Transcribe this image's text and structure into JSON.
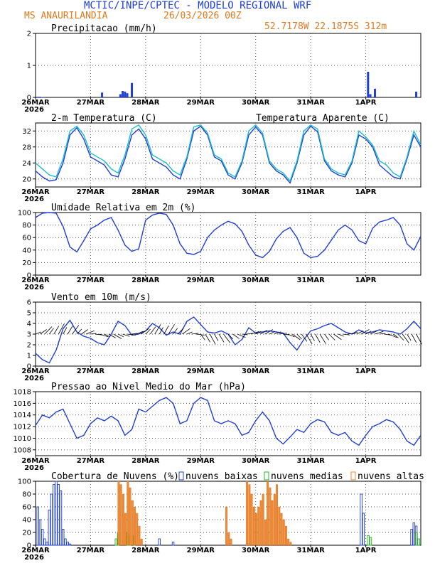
{
  "header": {
    "title": "MCTIC/INPE/CPTEC - MODELO REGIONAL WRF",
    "location": "MS ANAURILANDIA",
    "run": "26/03/2026 00Z",
    "coords": "52.7178W 22.1875S 312m"
  },
  "colors": {
    "series": "#1f3fd6",
    "apparent": "#1bbfc9",
    "low": "#1f3fd6",
    "mid": "#22b822",
    "high": "#f08a30",
    "grid": "#555555",
    "vector": "#000000"
  },
  "x_axis": {
    "labels": [
      "26MAR",
      "27MAR",
      "28MAR",
      "29MAR",
      "30MAR",
      "31MAR",
      "1APR"
    ],
    "year": "2026",
    "hours": [
      0,
      168
    ]
  },
  "chart_data": [
    {
      "type": "bar",
      "title": "Precipitacao (mm/h)",
      "ylim": [
        0,
        2
      ],
      "yticks": [
        "0",
        "1",
        "2"
      ],
      "series": [
        {
          "name": "Precipitacao",
          "x": [
            1,
            2,
            3,
            29,
            37,
            38,
            39,
            40,
            42,
            145,
            146,
            148,
            166
          ],
          "values": [
            0.02,
            0.02,
            0.01,
            0.15,
            0.1,
            0.2,
            0.18,
            0.13,
            0.45,
            0.8,
            0.1,
            0.27,
            0.18
          ]
        }
      ]
    },
    {
      "type": "line",
      "title": "2-m Temperatura (C)",
      "legend": "Temperatura Aparente (C)",
      "ylim": [
        18,
        34
      ],
      "yticks": [
        "20",
        "24",
        "28",
        "32"
      ],
      "x": [
        0,
        3,
        6,
        9,
        12,
        15,
        18,
        21,
        24,
        27,
        30,
        33,
        36,
        39,
        42,
        45,
        48,
        51,
        54,
        57,
        60,
        63,
        66,
        69,
        72,
        75,
        78,
        81,
        84,
        87,
        90,
        93,
        96,
        99,
        102,
        105,
        108,
        111,
        114,
        117,
        120,
        123,
        126,
        129,
        132,
        135,
        138,
        141,
        144,
        147,
        150,
        153,
        156,
        159,
        162,
        165,
        168
      ],
      "series": [
        {
          "name": "Temperatura",
          "values": [
            22,
            20.5,
            19.5,
            19.8,
            24,
            31,
            32.8,
            30,
            25.5,
            24.5,
            23.5,
            21,
            20.5,
            25,
            31,
            32.5,
            30,
            25,
            24,
            23,
            21,
            20,
            25,
            32,
            33.2,
            31,
            25.5,
            24.5,
            21,
            20,
            24,
            31,
            33,
            31,
            24,
            22,
            21,
            19,
            24,
            31,
            33.2,
            31.8,
            24.5,
            22,
            21,
            20.5,
            24,
            31,
            30,
            28,
            23.5,
            22,
            20.5,
            20,
            25,
            31,
            28
          ]
        },
        {
          "name": "Temperatura Aparente",
          "values": [
            24,
            22.5,
            21,
            20.5,
            25,
            32,
            33.2,
            31,
            26.5,
            25.5,
            24.5,
            22.5,
            21.5,
            26,
            32.5,
            33.5,
            31,
            26,
            25,
            24,
            22,
            21,
            25.5,
            33,
            33.5,
            31.5,
            26,
            25,
            21.5,
            20.5,
            24.5,
            32,
            33.5,
            31.5,
            24.5,
            22.5,
            21.5,
            19.5,
            24.5,
            32,
            33.5,
            32.5,
            25,
            22.5,
            21.5,
            21,
            24.5,
            32,
            30.5,
            28.5,
            24.5,
            23.5,
            21.5,
            20.5,
            25.5,
            32,
            28.5
          ]
        }
      ]
    },
    {
      "type": "line",
      "title": "Umidade Relativa em 2m (%)",
      "ylim": [
        0,
        100
      ],
      "yticks": [
        "0",
        "20",
        "40",
        "60",
        "80",
        "100"
      ],
      "x": [
        0,
        3,
        6,
        9,
        12,
        15,
        18,
        21,
        24,
        27,
        30,
        33,
        36,
        39,
        42,
        45,
        48,
        51,
        54,
        57,
        60,
        63,
        66,
        69,
        72,
        75,
        78,
        81,
        84,
        87,
        90,
        93,
        96,
        99,
        102,
        105,
        108,
        111,
        114,
        117,
        120,
        123,
        126,
        129,
        132,
        135,
        138,
        141,
        144,
        147,
        150,
        153,
        156,
        159,
        162,
        165,
        168
      ],
      "series": [
        {
          "name": "Umidade",
          "values": [
            92,
            99,
            100,
            99,
            78,
            45,
            37,
            55,
            74,
            80,
            88,
            92,
            72,
            48,
            38,
            42,
            88,
            96,
            99,
            97,
            80,
            50,
            35,
            33,
            38,
            60,
            72,
            80,
            86,
            82,
            70,
            48,
            32,
            28,
            38,
            58,
            70,
            76,
            60,
            35,
            28,
            30,
            40,
            56,
            72,
            80,
            72,
            55,
            50,
            75,
            85,
            88,
            92,
            80,
            50,
            40,
            62
          ]
        }
      ]
    },
    {
      "type": "line",
      "title": "Vento em 10m (m/s)",
      "ylim": [
        0,
        6
      ],
      "yticks": [
        "0",
        "1",
        "2",
        "3",
        "4",
        "5",
        "6"
      ],
      "x": [
        0,
        3,
        6,
        9,
        12,
        15,
        18,
        21,
        24,
        27,
        30,
        33,
        36,
        39,
        42,
        45,
        48,
        51,
        54,
        57,
        60,
        63,
        66,
        69,
        72,
        75,
        78,
        81,
        84,
        87,
        90,
        93,
        96,
        99,
        102,
        105,
        108,
        111,
        114,
        117,
        120,
        123,
        126,
        129,
        132,
        135,
        138,
        141,
        144,
        147,
        150,
        153,
        156,
        159,
        162,
        165,
        168
      ],
      "series": [
        {
          "name": "Vento",
          "values": [
            1.2,
            0.6,
            0.3,
            1.5,
            3.5,
            4.3,
            3.2,
            2.8,
            2.6,
            2.2,
            2.0,
            3.0,
            4.2,
            3.8,
            2.9,
            3.0,
            3.3,
            4.0,
            3.6,
            2.9,
            3.2,
            3.0,
            4.2,
            4.6,
            3.9,
            3.2,
            3.1,
            3.3,
            3.0,
            2.0,
            2.5,
            3.6,
            3.1,
            3.2,
            3.3,
            3.2,
            3.1,
            2.2,
            1.5,
            2.5,
            3.3,
            3.5,
            3.8,
            4.0,
            3.6,
            3.2,
            3.0,
            3.4,
            3.1,
            3.2,
            3.4,
            3.3,
            3.2,
            3.0,
            3.5,
            4.2,
            3.5
          ]
        }
      ]
    },
    {
      "type": "line",
      "title": "Pressao ao Nivel Medio do Mar (hPa)",
      "ylim": [
        1007,
        1018
      ],
      "yticks": [
        "1008",
        "1010",
        "1012",
        "1014",
        "1016",
        "1018"
      ],
      "x": [
        0,
        3,
        6,
        9,
        12,
        15,
        18,
        21,
        24,
        27,
        30,
        33,
        36,
        39,
        42,
        45,
        48,
        51,
        54,
        57,
        60,
        63,
        66,
        69,
        72,
        75,
        78,
        81,
        84,
        87,
        90,
        93,
        96,
        99,
        102,
        105,
        108,
        111,
        114,
        117,
        120,
        123,
        126,
        129,
        132,
        135,
        138,
        141,
        144,
        147,
        150,
        153,
        156,
        159,
        162,
        165,
        168
      ],
      "series": [
        {
          "name": "Pressao",
          "values": [
            1012.2,
            1014,
            1013.5,
            1014.5,
            1015,
            1012.5,
            1010,
            1010.5,
            1012.5,
            1013.5,
            1013,
            1013.8,
            1013,
            1010.5,
            1011.5,
            1015,
            1014.5,
            1015.5,
            1016.5,
            1017,
            1016,
            1012.5,
            1013,
            1016,
            1017,
            1016.5,
            1013,
            1012.5,
            1013,
            1012.5,
            1010.5,
            1011,
            1013,
            1014.5,
            1013,
            1010,
            1009,
            1010.2,
            1011.5,
            1011,
            1012.5,
            1013.2,
            1012.8,
            1011,
            1010.5,
            1011,
            1009.5,
            1008.8,
            1010.5,
            1012,
            1012.5,
            1013.2,
            1012.8,
            1011.5,
            1009.5,
            1008.8,
            1010.5
          ]
        }
      ]
    },
    {
      "type": "bar",
      "title": "Cobertura de Nuvens (%)",
      "legend": [
        "nuvens baixas",
        "nuvens medias",
        "nuvens altas"
      ],
      "ylim": [
        0,
        100
      ],
      "yticks": [
        "0",
        "20",
        "40",
        "60",
        "80",
        "100"
      ],
      "series": [
        {
          "name": "nuvens baixas",
          "x": [
            1,
            2,
            3,
            4,
            5,
            6,
            7,
            8,
            9,
            10,
            11,
            12,
            13,
            14,
            15,
            54,
            60,
            142,
            143,
            164,
            165,
            166
          ],
          "values": [
            60,
            40,
            25,
            10,
            5,
            55,
            80,
            95,
            100,
            95,
            85,
            25,
            10,
            5,
            2,
            10,
            5,
            80,
            50,
            25,
            35,
            30
          ]
        },
        {
          "name": "nuvens medias",
          "x": [
            35,
            36,
            40,
            41,
            43,
            145,
            146,
            166,
            167
          ],
          "values": [
            10,
            20,
            20,
            15,
            15,
            15,
            12,
            20,
            10
          ]
        },
        {
          "name": "nuvens altas",
          "x": [
            36,
            37,
            38,
            39,
            40,
            41,
            42,
            43,
            44,
            45,
            46,
            83,
            84,
            85,
            92,
            93,
            94,
            95,
            96,
            97,
            98,
            99,
            100,
            101,
            102,
            103,
            104,
            105,
            106,
            107,
            108,
            109,
            110,
            111
          ],
          "values": [
            100,
            95,
            80,
            50,
            100,
            90,
            70,
            60,
            50,
            30,
            10,
            60,
            20,
            10,
            100,
            95,
            80,
            60,
            50,
            60,
            70,
            80,
            40,
            100,
            90,
            70,
            80,
            95,
            60,
            50,
            40,
            30,
            10,
            5
          ]
        }
      ]
    }
  ]
}
